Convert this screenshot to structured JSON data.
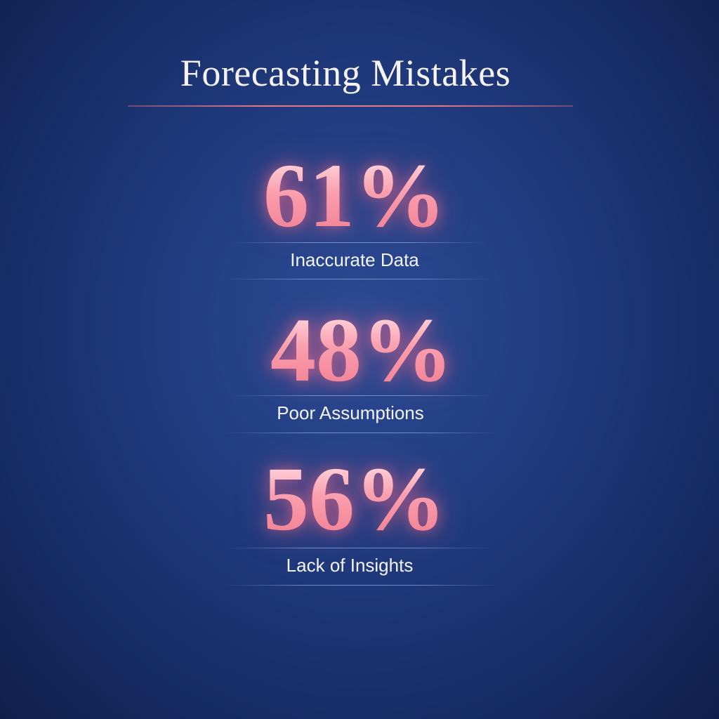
{
  "title": "Forecasting Mistakes",
  "accent_color": "#f99aa8",
  "stats": [
    {
      "value": "61%",
      "label": "Inaccurate Data"
    },
    {
      "value": "48%",
      "label": "Poor Assumptions"
    },
    {
      "value": "56%",
      "label": "Lack of Insights"
    }
  ]
}
